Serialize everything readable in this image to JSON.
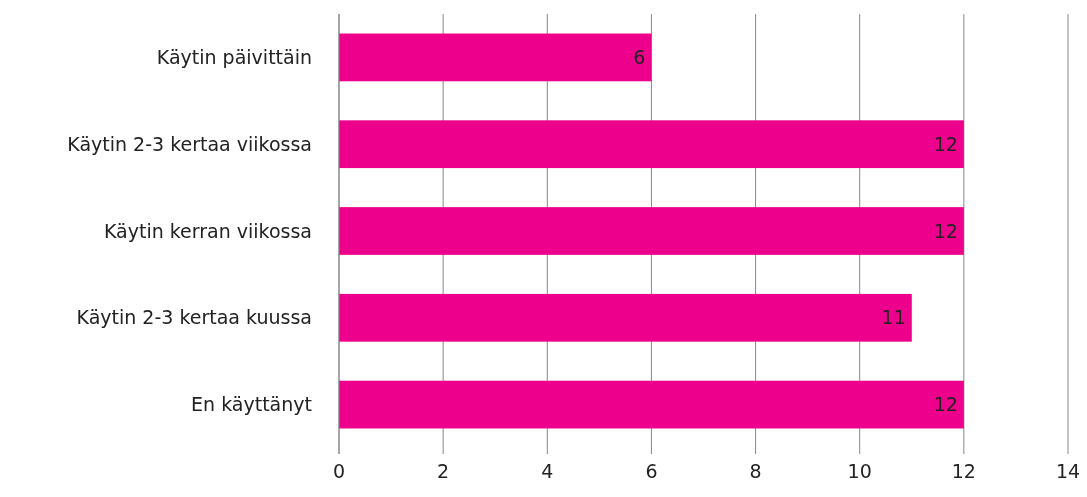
{
  "chart_data": {
    "type": "bar",
    "orientation": "horizontal",
    "categories": [
      "Käytin päivittäin",
      "Käytin 2-3 kertaa viikossa",
      "Käytin kerran viikossa",
      "Käytin 2-3 kertaa kuussa",
      "En käyttänyt"
    ],
    "values": [
      6,
      12,
      12,
      11,
      12
    ],
    "color": "#ec008c",
    "xlim": [
      0,
      14
    ],
    "xticks": [
      0,
      2,
      4,
      6,
      8,
      10,
      12,
      14
    ],
    "grid": "x",
    "data_labels": true
  }
}
